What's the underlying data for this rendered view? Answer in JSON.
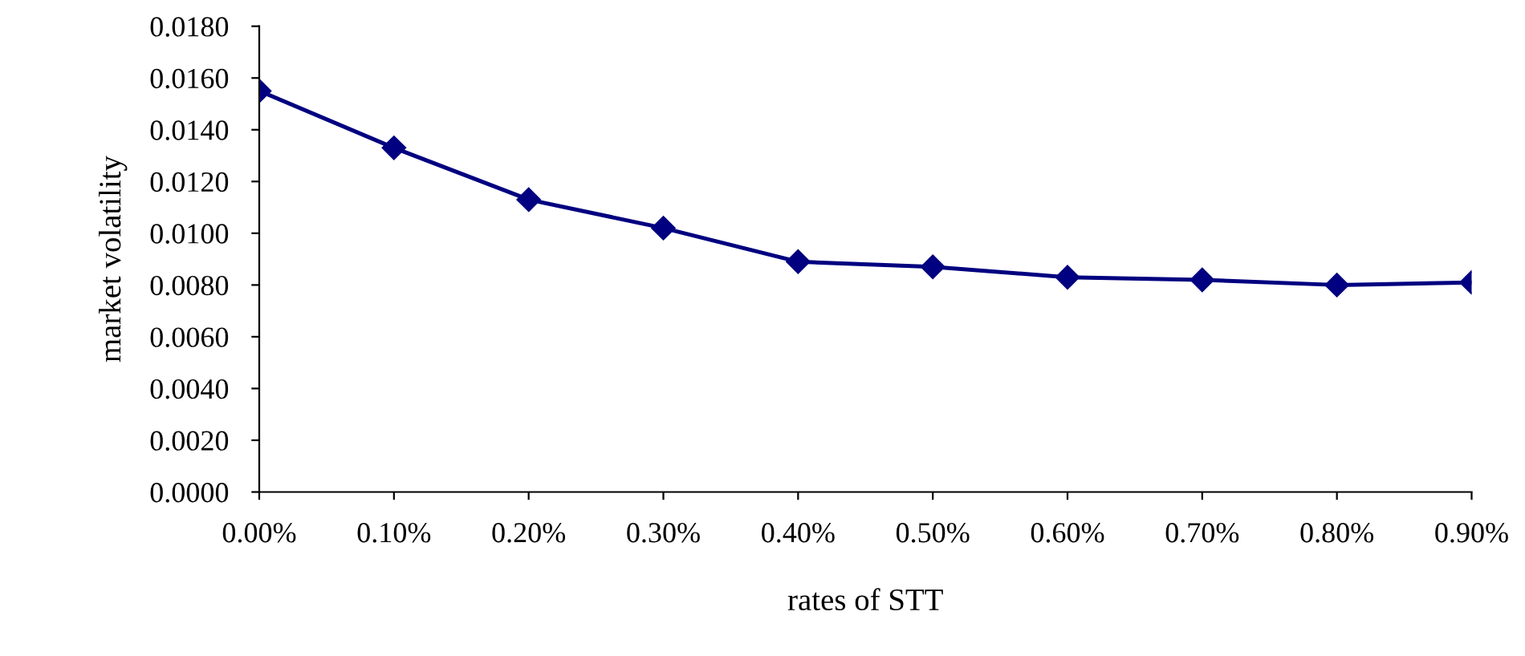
{
  "chart_data": {
    "type": "line",
    "xlabel": "rates of STT",
    "ylabel": "market volatility",
    "categories": [
      "0.00%",
      "0.10%",
      "0.20%",
      "0.30%",
      "0.40%",
      "0.50%",
      "0.60%",
      "0.70%",
      "0.80%",
      "0.90%"
    ],
    "series": [
      {
        "color": "#000080",
        "values": [
          0.0155,
          0.0133,
          0.0113,
          0.0102,
          0.0089,
          0.0087,
          0.0083,
          0.0082,
          0.008,
          0.0081
        ]
      }
    ],
    "ylim": [
      0,
      0.018
    ],
    "yticks": [
      {
        "value": 0,
        "label": "0.0000"
      },
      {
        "value": 0.002,
        "label": "0.0020"
      },
      {
        "value": 0.004,
        "label": "0.0040"
      },
      {
        "value": 0.006,
        "label": "0.0060"
      },
      {
        "value": 0.008,
        "label": "0.0080"
      },
      {
        "value": 0.01,
        "label": "0.0100"
      },
      {
        "value": 0.012,
        "label": "0.0120"
      },
      {
        "value": 0.014,
        "label": "0.0140"
      },
      {
        "value": 0.016,
        "label": "0.0160"
      },
      {
        "value": 0.018,
        "label": "0.0180"
      }
    ],
    "grid": false,
    "legend": false,
    "marker": "diamond",
    "line_style": "solid"
  }
}
